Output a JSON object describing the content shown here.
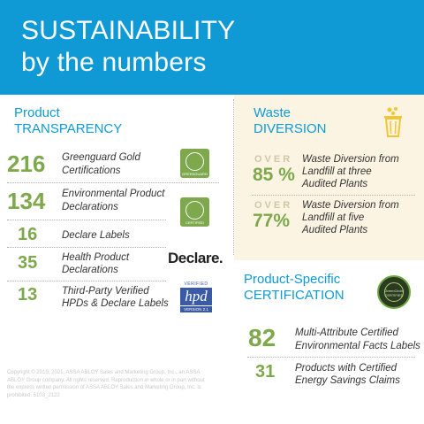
{
  "header": {
    "line1": "SUSTAINABILITY",
    "line2": "by the numbers"
  },
  "product_transparency": {
    "title_line1": "Product",
    "title_line2": "TRANSPARENCY",
    "rows": [
      {
        "value": "216",
        "label_line1": "Greenguard Gold",
        "label_line2": "Certifications"
      },
      {
        "value": "134",
        "label_line1": "Environmental Product",
        "label_line2": "Declarations"
      },
      {
        "value": "16",
        "label_line1": "Declare Labels",
        "label_line2": ""
      },
      {
        "value": "35",
        "label_line1": "Health Product",
        "label_line2": "Declarations"
      },
      {
        "value": "13",
        "label_line1": "Third-Party Verified",
        "label_line2": "HPDs & Declare Labels"
      }
    ]
  },
  "waste_diversion": {
    "title_line1": "Waste",
    "title_line2": "DIVERSION",
    "rows": [
      {
        "over": "OVER",
        "value": "85 %",
        "label_line1": "Waste Diversion from",
        "label_line2": "Landfill at three",
        "label_line3": "Audited Plants"
      },
      {
        "over": "OVER",
        "value": "77%",
        "label_line1": "Waste Diversion from",
        "label_line2": "Landfill at five",
        "label_line3": "Audited Plants"
      }
    ]
  },
  "product_specific": {
    "title_line1": "Product-Specific",
    "title_line2": "CERTIFICATION",
    "rows": [
      {
        "value": "82",
        "label_line1": "Multi-Attribute Certified",
        "label_line2": "Environmental Facts Labels"
      },
      {
        "value": "31",
        "label_line1": "Products with Certified",
        "label_line2": "Energy Savings Claims"
      }
    ]
  },
  "logos": {
    "greenguard1": "GREENGUARD",
    "greenguard2": "CERTIFIED",
    "declare": "Declare.",
    "hpd_top": "VERIFIED",
    "hpd_mid": "hpd",
    "hpd_bot": "VERSION 2.1",
    "green_circle": "GreenCircle CERTIFIED"
  },
  "footer": {
    "text": "Copyright © 2019, 2021, ASSA ABLOY Sales and Marketing Group, Inc., an ASSA ABLOY Group company. All rights reserved. Reproduction in whole or in part without the express written permission of ASSA ABLOY Sales and Marketing Group, Inc. is prohibited.  5103_2122"
  },
  "colors": {
    "header_bg": "#0f9ad6",
    "accent_blue": "#0f9ad6",
    "accent_green": "#7ea84c",
    "panel_bg": "#fbf4e3"
  }
}
